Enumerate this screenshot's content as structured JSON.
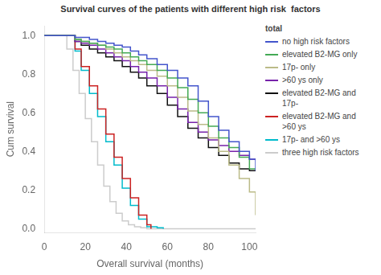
{
  "chart_data": {
    "type": "step",
    "title": "Survival curves of the patients with different high risk  factors",
    "xlabel": "Overall survival (months)",
    "ylabel": "Cum survival",
    "xlim": [
      0,
      103
    ],
    "ylim": [
      -0.02,
      1.05
    ],
    "xticks": [
      0,
      20,
      40,
      60,
      80,
      100
    ],
    "yticks": [
      {
        "value": 0.0,
        "label": "0.0"
      },
      0.2,
      0.4,
      0.6,
      0.8,
      {
        "value": 1.0,
        "label": "1.0"
      }
    ],
    "grid": false,
    "legend": "right",
    "legend_title": "total",
    "series": [
      {
        "name": "no high risk factors",
        "color": "#4455cc",
        "x": [
          0,
          12,
          15,
          18,
          22,
          26,
          30,
          34,
          38,
          42,
          46,
          50,
          55,
          60,
          65,
          70,
          75,
          80,
          85,
          90,
          95,
          100,
          103
        ],
        "values": [
          1.0,
          1.0,
          0.99,
          0.99,
          0.98,
          0.97,
          0.96,
          0.95,
          0.94,
          0.92,
          0.9,
          0.88,
          0.85,
          0.82,
          0.78,
          0.74,
          0.66,
          0.58,
          0.51,
          0.45,
          0.4,
          0.36,
          0.3
        ]
      },
      {
        "name": "elevated B2-MG only",
        "color": "#44aa55",
        "x": [
          0,
          12,
          15,
          18,
          22,
          26,
          30,
          34,
          38,
          42,
          46,
          50,
          55,
          60,
          65,
          70,
          75,
          80,
          85,
          90,
          95,
          100,
          103
        ],
        "values": [
          1.0,
          1.0,
          0.98,
          0.97,
          0.96,
          0.95,
          0.94,
          0.93,
          0.91,
          0.89,
          0.87,
          0.85,
          0.82,
          0.78,
          0.73,
          0.67,
          0.6,
          0.53,
          0.47,
          0.42,
          0.37,
          0.31,
          0.31
        ]
      },
      {
        "name": "17p- only",
        "color": "#bbbb88",
        "x": [
          0,
          12,
          15,
          18,
          22,
          26,
          30,
          34,
          38,
          42,
          46,
          50,
          55,
          60,
          65,
          70,
          75,
          80,
          85,
          90,
          95,
          100,
          103
        ],
        "values": [
          1.0,
          1.0,
          0.98,
          0.97,
          0.96,
          0.95,
          0.93,
          0.91,
          0.89,
          0.87,
          0.85,
          0.82,
          0.79,
          0.74,
          0.68,
          0.61,
          0.54,
          0.47,
          0.4,
          0.33,
          0.26,
          0.19,
          0.07
        ]
      },
      {
        "name": ">60 ys only",
        "color": "#7722aa",
        "x": [
          0,
          12,
          15,
          18,
          22,
          26,
          30,
          34,
          38,
          42,
          46,
          50,
          55,
          60,
          65,
          70,
          75,
          80,
          85,
          90,
          95,
          100,
          103
        ],
        "values": [
          1.0,
          1.0,
          0.97,
          0.96,
          0.95,
          0.93,
          0.91,
          0.89,
          0.87,
          0.84,
          0.81,
          0.78,
          0.74,
          0.68,
          0.62,
          0.55,
          0.5,
          0.46,
          0.43,
          0.4,
          0.38,
          0.36,
          0.36
        ]
      },
      {
        "name": "elevated B2-MG and\n17p-",
        "color": "#111111",
        "x": [
          0,
          12,
          15,
          18,
          22,
          26,
          30,
          34,
          38,
          42,
          46,
          50,
          55,
          60,
          65,
          70,
          75,
          80,
          85,
          90,
          95,
          100,
          103
        ],
        "values": [
          1.0,
          1.0,
          0.97,
          0.95,
          0.93,
          0.91,
          0.89,
          0.87,
          0.84,
          0.81,
          0.78,
          0.74,
          0.7,
          0.64,
          0.58,
          0.52,
          0.47,
          0.42,
          0.38,
          0.34,
          0.31,
          0.3,
          0.3
        ]
      },
      {
        "name": "elevated B2-MG and\n>60 ys",
        "color": "#cc2222",
        "x": [
          0,
          12,
          15,
          18,
          22,
          26,
          30,
          34,
          38,
          42,
          46,
          50,
          52
        ],
        "values": [
          1.0,
          1.0,
          0.93,
          0.84,
          0.74,
          0.62,
          0.49,
          0.37,
          0.26,
          0.16,
          0.07,
          0.02,
          0.0
        ]
      },
      {
        "name": "17p- and >60 ys",
        "color": "#00bbcc",
        "x": [
          0,
          12,
          15,
          18,
          22,
          26,
          30,
          34,
          38,
          42,
          46,
          50,
          55,
          58
        ],
        "values": [
          1.0,
          1.0,
          0.92,
          0.82,
          0.7,
          0.58,
          0.45,
          0.33,
          0.21,
          0.12,
          0.05,
          0.01,
          0.005,
          0.0
        ]
      },
      {
        "name": "three high risk factors",
        "color": "#cccccc",
        "x": [
          0,
          11,
          14,
          17,
          20,
          23,
          26,
          29,
          32,
          35,
          38,
          41,
          44,
          47,
          50,
          100,
          103
        ],
        "values": [
          1.0,
          0.93,
          0.82,
          0.7,
          0.57,
          0.45,
          0.33,
          0.22,
          0.14,
          0.08,
          0.04,
          0.02,
          0.01,
          0.005,
          0.0,
          0.0,
          0.0
        ]
      }
    ]
  }
}
